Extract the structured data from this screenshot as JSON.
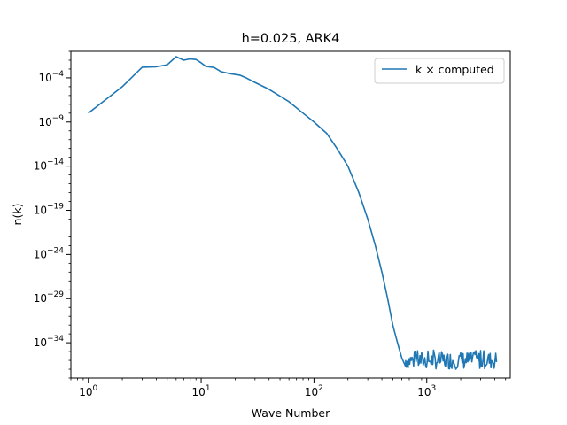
{
  "chart_data": {
    "type": "line",
    "title": "h=0.025, ARK4",
    "xlabel": "Wave Number",
    "ylabel": "n(k)",
    "x_scale": "log",
    "y_scale": "log",
    "xlim": [
      0.7,
      5500
    ],
    "ylim": [
      1e-38,
      0.1
    ],
    "grid": false,
    "legend": {
      "placement": "top-right",
      "entries": [
        "k × computed"
      ]
    },
    "x_ticks": [
      {
        "base": "10",
        "exp": "0",
        "value": 1
      },
      {
        "base": "10",
        "exp": "1",
        "value": 10
      },
      {
        "base": "10",
        "exp": "2",
        "value": 100
      },
      {
        "base": "10",
        "exp": "3",
        "value": 1000
      }
    ],
    "y_ticks": [
      {
        "base": "10",
        "exp": "−4",
        "value": 0.0001
      },
      {
        "base": "10",
        "exp": "−9",
        "value": 1e-09
      },
      {
        "base": "10",
        "exp": "−14",
        "value": 1e-14
      },
      {
        "base": "10",
        "exp": "−19",
        "value": 1e-19
      },
      {
        "base": "10",
        "exp": "−24",
        "value": 1e-24
      },
      {
        "base": "10",
        "exp": "−29",
        "value": 1e-29
      },
      {
        "base": "10",
        "exp": "−34",
        "value": 1e-34
      }
    ],
    "series": [
      {
        "name": "k × computed",
        "color": "#1f77b4",
        "points": [
          [
            1,
            1e-08
          ],
          [
            2,
            1e-05
          ],
          [
            3,
            0.0016
          ],
          [
            4,
            0.0018
          ],
          [
            5,
            0.003
          ],
          [
            6,
            0.025
          ],
          [
            7,
            0.01
          ],
          [
            8,
            0.014
          ],
          [
            9,
            0.012
          ],
          [
            10,
            0.005
          ],
          [
            11,
            0.002
          ],
          [
            13,
            0.0015
          ],
          [
            15,
            0.0005
          ],
          [
            18,
            0.0003
          ],
          [
            22,
            0.0002
          ],
          [
            25,
            0.0001
          ],
          [
            30,
            3e-05
          ],
          [
            40,
            5e-06
          ],
          [
            60,
            2e-07
          ],
          [
            80,
            1e-08
          ],
          [
            100,
            1e-09
          ],
          [
            130,
            5e-11
          ],
          [
            160,
            1e-12
          ],
          [
            200,
            1e-14
          ],
          [
            250,
            1e-17
          ],
          [
            300,
            1e-20
          ],
          [
            350,
            1e-23
          ],
          [
            400,
            1e-26
          ],
          [
            450,
            1e-29
          ],
          [
            500,
            1e-32
          ],
          [
            550,
            1e-34
          ],
          [
            600,
            2e-36
          ],
          [
            650,
            2e-37
          ]
        ],
        "noise_floor": {
          "x_start": 650,
          "x_end": 4200,
          "y_low": 1e-37,
          "y_high": 1e-35,
          "peak": 1.5e-35
        }
      }
    ]
  }
}
